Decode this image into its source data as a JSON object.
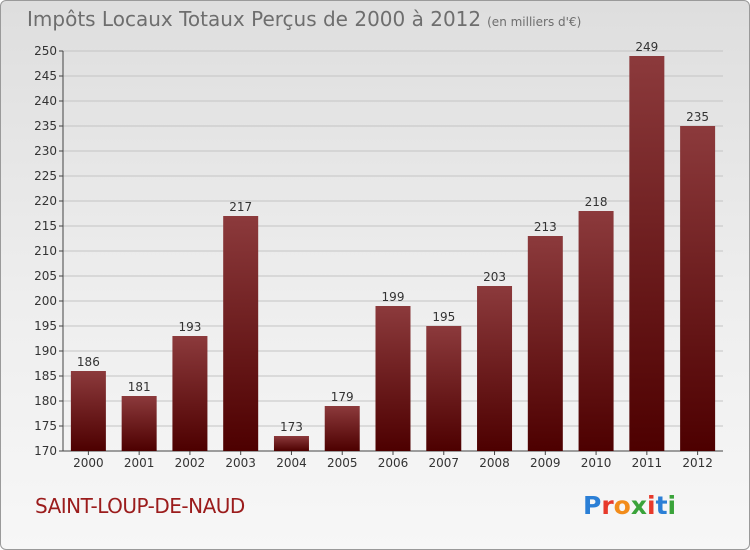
{
  "title": "Impôts Locaux Totaux Perçus de 2000 à 2012",
  "subtitle": "(en milliers d'€)",
  "city": "SAINT-LOUP-DE-NAUD",
  "logo": "Proxiti",
  "colors": {
    "bar_top": "#8c3a3c",
    "bar_bottom": "#4d0000",
    "city_text": "#9b1c1c",
    "title_text": "#6e6e6e",
    "logo_letters": [
      "#2b7fd6",
      "#e7392b",
      "#f28c1a",
      "#3aa33a",
      "#e7392b",
      "#2b7fd6",
      "#3aa33a"
    ]
  },
  "chart_data": {
    "type": "bar",
    "categories": [
      "2000",
      "2001",
      "2002",
      "2003",
      "2004",
      "2005",
      "2006",
      "2007",
      "2008",
      "2009",
      "2010",
      "2011",
      "2012"
    ],
    "values": [
      186,
      181,
      193,
      217,
      173,
      179,
      199,
      195,
      203,
      213,
      218,
      249,
      235
    ],
    "ylim": [
      170,
      250
    ],
    "yticks": [
      170,
      175,
      180,
      185,
      190,
      195,
      200,
      205,
      210,
      215,
      220,
      225,
      230,
      235,
      240,
      245,
      250
    ],
    "grid": true,
    "data_labels": true
  }
}
